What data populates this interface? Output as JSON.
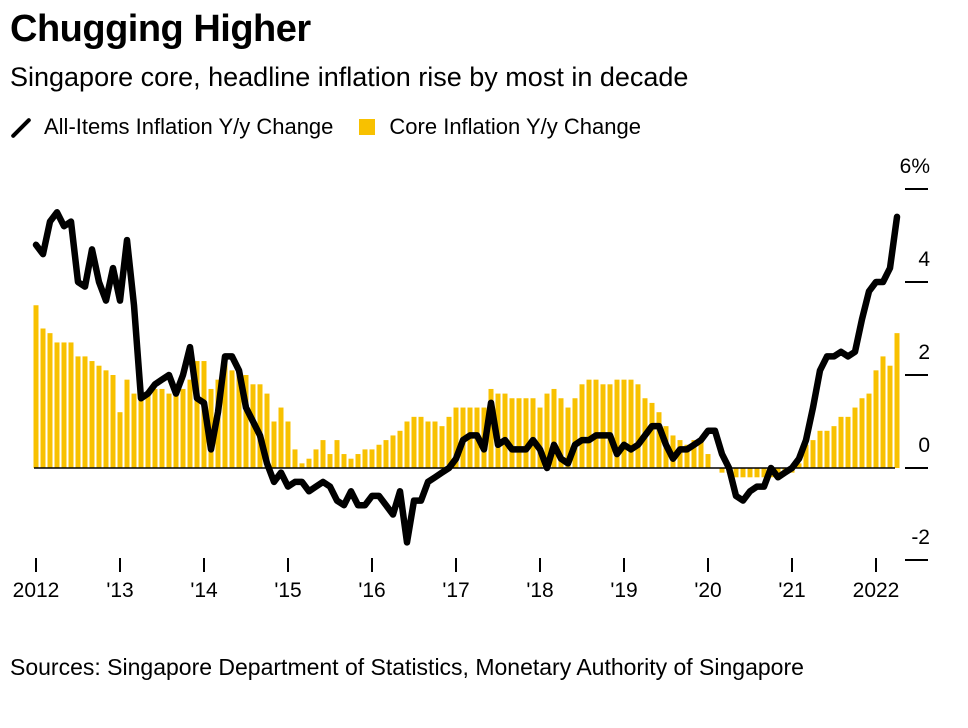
{
  "colors": {
    "headline": "#000000",
    "core": "#f8c100",
    "axis": "#000000"
  },
  "chart_data": {
    "type": "bar+line",
    "title": "Chugging Higher",
    "subtitle": "Singapore core, headline inflation rise by most in decade",
    "legend": [
      {
        "name": "All-Items Inflation Y/y Change",
        "kind": "line",
        "icon": "diagonal-line-icon"
      },
      {
        "name": "Core Inflation Y/y Change",
        "kind": "bar",
        "icon": "yellow-square-icon"
      }
    ],
    "start": "2012-01",
    "frequency": "monthly",
    "ylim": [
      -2,
      6
    ],
    "yticks": [
      {
        "value": 6,
        "label": "6%"
      },
      {
        "value": 4,
        "label": "4"
      },
      {
        "value": 2,
        "label": "2"
      },
      {
        "value": 0,
        "label": "0"
      },
      {
        "value": -2,
        "label": "-2"
      }
    ],
    "xticks": [
      {
        "month_index": 0,
        "label": "2012"
      },
      {
        "month_index": 12,
        "label": "'13"
      },
      {
        "month_index": 24,
        "label": "'14"
      },
      {
        "month_index": 36,
        "label": "'15"
      },
      {
        "month_index": 48,
        "label": "'16"
      },
      {
        "month_index": 60,
        "label": "'17"
      },
      {
        "month_index": 72,
        "label": "'18"
      },
      {
        "month_index": 84,
        "label": "'19"
      },
      {
        "month_index": 96,
        "label": "'20"
      },
      {
        "month_index": 108,
        "label": "'21"
      },
      {
        "month_index": 120,
        "label": "2022"
      }
    ],
    "series": [
      {
        "name": "All-Items Inflation Y/y Change",
        "type": "line",
        "values": [
          4.8,
          4.6,
          5.3,
          5.5,
          5.2,
          5.3,
          4.0,
          3.9,
          4.7,
          4.0,
          3.6,
          4.3,
          3.6,
          4.9,
          3.5,
          1.5,
          1.6,
          1.8,
          1.9,
          2.0,
          1.6,
          2.0,
          2.6,
          1.5,
          1.4,
          0.4,
          1.2,
          2.4,
          2.4,
          2.1,
          1.3,
          1.0,
          0.7,
          0.1,
          -0.3,
          -0.1,
          -0.4,
          -0.3,
          -0.3,
          -0.5,
          -0.4,
          -0.3,
          -0.4,
          -0.7,
          -0.8,
          -0.5,
          -0.8,
          -0.8,
          -0.6,
          -0.6,
          -0.8,
          -1.0,
          -0.5,
          -1.6,
          -0.7,
          -0.7,
          -0.3,
          -0.2,
          -0.1,
          0.0,
          0.2,
          0.6,
          0.7,
          0.7,
          0.4,
          1.4,
          0.5,
          0.6,
          0.4,
          0.4,
          0.4,
          0.6,
          0.4,
          0.0,
          0.5,
          0.2,
          0.1,
          0.5,
          0.6,
          0.6,
          0.7,
          0.7,
          0.7,
          0.3,
          0.5,
          0.4,
          0.5,
          0.7,
          0.9,
          0.9,
          0.5,
          0.2,
          0.4,
          0.4,
          0.5,
          0.6,
          0.8,
          0.8,
          0.3,
          0.0,
          -0.6,
          -0.7,
          -0.5,
          -0.4,
          -0.4,
          0.0,
          -0.2,
          -0.1,
          0.0,
          0.2,
          0.6,
          1.3,
          2.1,
          2.4,
          2.4,
          2.5,
          2.4,
          2.5,
          3.2,
          3.8,
          4.0,
          4.0,
          4.3,
          5.4
        ]
      },
      {
        "name": "Core Inflation Y/y Change",
        "type": "bar",
        "values": [
          3.5,
          3.0,
          2.9,
          2.7,
          2.7,
          2.7,
          2.4,
          2.4,
          2.3,
          2.2,
          2.1,
          2.0,
          1.2,
          1.9,
          1.6,
          1.5,
          1.6,
          1.7,
          1.7,
          1.6,
          1.6,
          1.7,
          1.9,
          2.3,
          2.3,
          1.7,
          1.9,
          2.3,
          2.1,
          2.0,
          2.0,
          1.8,
          1.8,
          1.6,
          1.0,
          1.3,
          1.0,
          0.4,
          0.1,
          0.2,
          0.4,
          0.6,
          0.3,
          0.6,
          0.3,
          0.2,
          0.3,
          0.4,
          0.4,
          0.5,
          0.6,
          0.7,
          0.8,
          1.0,
          1.1,
          1.1,
          1.0,
          1.0,
          0.9,
          1.1,
          1.3,
          1.3,
          1.3,
          1.3,
          1.3,
          1.7,
          1.6,
          1.6,
          1.5,
          1.5,
          1.5,
          1.5,
          1.3,
          1.6,
          1.7,
          1.5,
          1.3,
          1.5,
          1.8,
          1.9,
          1.9,
          1.8,
          1.8,
          1.9,
          1.9,
          1.9,
          1.8,
          1.5,
          1.4,
          1.2,
          0.9,
          0.7,
          0.6,
          0.5,
          0.6,
          0.6,
          0.3,
          0.0,
          -0.1,
          -0.1,
          -0.2,
          -0.2,
          -0.2,
          -0.2,
          -0.2,
          -0.2,
          -0.1,
          -0.1,
          -0.1,
          0.1,
          0.5,
          0.6,
          0.8,
          0.8,
          0.9,
          1.1,
          1.1,
          1.3,
          1.5,
          1.6,
          2.1,
          2.4,
          2.2,
          2.9
        ]
      }
    ]
  },
  "footer": {
    "source": "Sources: Singapore Department of Statistics, Monetary Authority of Singapore"
  }
}
